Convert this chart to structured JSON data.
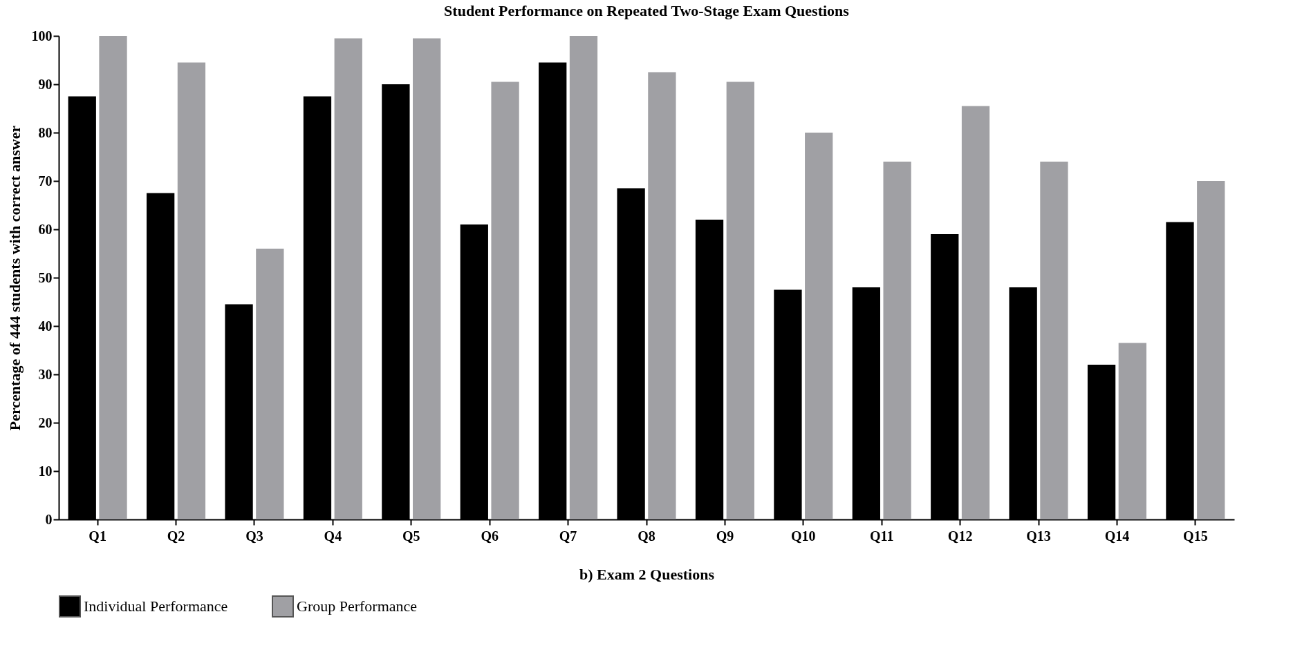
{
  "chart_data": {
    "type": "bar",
    "title": "Student Performance on Repeated Two-Stage Exam Questions",
    "xlabel": "b) Exam 2 Questions",
    "ylabel": "Percentage of 444 students with correct answer",
    "categories": [
      "Q1",
      "Q2",
      "Q3",
      "Q4",
      "Q5",
      "Q6",
      "Q7",
      "Q8",
      "Q9",
      "Q10",
      "Q11",
      "Q12",
      "Q13",
      "Q14",
      "Q15"
    ],
    "series": [
      {
        "name": "Individual Performance",
        "color": "#000000",
        "values": [
          87.5,
          67.5,
          44.5,
          87.5,
          90,
          61,
          94.5,
          68.5,
          62,
          47.5,
          48,
          59,
          48,
          32,
          61.5
        ]
      },
      {
        "name": "Group Performance",
        "color": "#a0a0a4",
        "values": [
          100,
          94.5,
          56,
          99.5,
          99.5,
          90.5,
          100,
          92.5,
          90.5,
          80,
          74,
          85.5,
          74,
          36.5,
          70
        ]
      }
    ],
    "ylim": [
      0,
      100
    ],
    "yticks": [
      0,
      10,
      20,
      30,
      40,
      50,
      60,
      70,
      80,
      90,
      100
    ],
    "grid": false,
    "legend": "bottom"
  }
}
